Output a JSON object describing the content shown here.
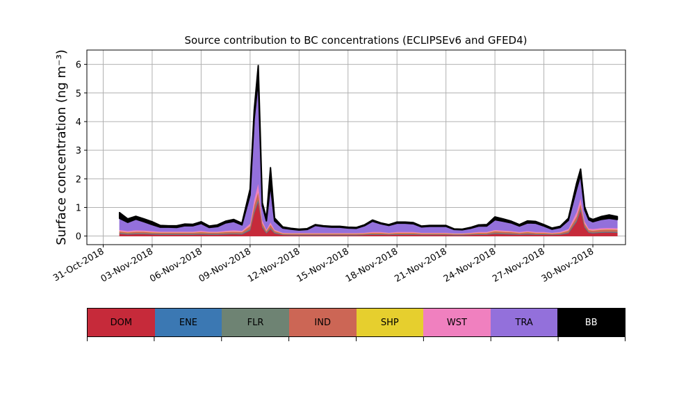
{
  "chart_data": {
    "type": "area",
    "title": "Source contribution to BC concentrations (ECLIPSEv6 and GFED4)",
    "ylabel": "Surface concentration (ng m⁻³)",
    "xlabel": "",
    "ylim": [
      -0.3,
      6.5
    ],
    "yticks": [
      0,
      1,
      2,
      3,
      4,
      5,
      6
    ],
    "xlim": [
      "2018-10-30",
      "2018-12-02"
    ],
    "xticks": [
      "2018-10-31",
      "2018-11-03",
      "2018-11-06",
      "2018-11-09",
      "2018-11-12",
      "2018-11-15",
      "2018-11-18",
      "2018-11-21",
      "2018-11-24",
      "2018-11-27",
      "2018-11-30"
    ],
    "xtick_labels": [
      "31-Oct-2018",
      "03-Nov-2018",
      "06-Nov-2018",
      "09-Nov-2018",
      "12-Nov-2018",
      "15-Nov-2018",
      "18-Nov-2018",
      "21-Nov-2018",
      "24-Nov-2018",
      "27-Nov-2018",
      "30-Nov-2018"
    ],
    "grid": true,
    "x": [
      "2018-11-01",
      "2018-11-01T12",
      "2018-11-02",
      "2018-11-02T12",
      "2018-11-03",
      "2018-11-03T12",
      "2018-11-04",
      "2018-11-04T12",
      "2018-11-05",
      "2018-11-05T12",
      "2018-11-06",
      "2018-11-06T12",
      "2018-11-07",
      "2018-11-07T12",
      "2018-11-08",
      "2018-11-08T12",
      "2018-11-09",
      "2018-11-09T06",
      "2018-11-09T12",
      "2018-11-09T18",
      "2018-11-10",
      "2018-11-10T06",
      "2018-11-10T12",
      "2018-11-11",
      "2018-11-11T12",
      "2018-11-12",
      "2018-11-12T12",
      "2018-11-13",
      "2018-11-13T12",
      "2018-11-14",
      "2018-11-14T12",
      "2018-11-15",
      "2018-11-15T12",
      "2018-11-16",
      "2018-11-16T12",
      "2018-11-17",
      "2018-11-17T12",
      "2018-11-18",
      "2018-11-18T12",
      "2018-11-19",
      "2018-11-19T12",
      "2018-11-20",
      "2018-11-20T12",
      "2018-11-21",
      "2018-11-21T12",
      "2018-11-22",
      "2018-11-22T12",
      "2018-11-23",
      "2018-11-23T12",
      "2018-11-24",
      "2018-11-24T12",
      "2018-11-25",
      "2018-11-25T12",
      "2018-11-26",
      "2018-11-26T12",
      "2018-11-27",
      "2018-11-27T12",
      "2018-11-28",
      "2018-11-28T12",
      "2018-11-29",
      "2018-11-29T06",
      "2018-11-29T12",
      "2018-11-29T18",
      "2018-11-30",
      "2018-11-30T12",
      "2018-12-01",
      "2018-12-01T12"
    ],
    "series": [
      {
        "name": "DOM",
        "color": "#c62a3a",
        "values": [
          0.08,
          0.06,
          0.07,
          0.07,
          0.06,
          0.05,
          0.05,
          0.05,
          0.05,
          0.05,
          0.06,
          0.05,
          0.05,
          0.06,
          0.07,
          0.06,
          0.2,
          0.8,
          1.2,
          0.3,
          0.1,
          0.25,
          0.1,
          0.04,
          0.03,
          0.03,
          0.03,
          0.03,
          0.03,
          0.03,
          0.03,
          0.03,
          0.03,
          0.04,
          0.05,
          0.05,
          0.04,
          0.05,
          0.05,
          0.05,
          0.04,
          0.04,
          0.04,
          0.04,
          0.03,
          0.03,
          0.04,
          0.05,
          0.05,
          0.08,
          0.07,
          0.06,
          0.05,
          0.06,
          0.05,
          0.05,
          0.04,
          0.05,
          0.1,
          0.5,
          0.9,
          0.3,
          0.12,
          0.1,
          0.12,
          0.13,
          0.12
        ]
      },
      {
        "name": "ENE",
        "color": "#3b78b3",
        "values": [
          0.01,
          0.01,
          0.01,
          0.01,
          0.01,
          0.01,
          0.01,
          0.01,
          0.01,
          0.01,
          0.01,
          0.01,
          0.01,
          0.01,
          0.01,
          0.01,
          0.02,
          0.03,
          0.04,
          0.02,
          0.01,
          0.02,
          0.01,
          0.01,
          0.01,
          0.01,
          0.01,
          0.01,
          0.01,
          0.01,
          0.01,
          0.01,
          0.01,
          0.01,
          0.01,
          0.01,
          0.01,
          0.01,
          0.01,
          0.01,
          0.01,
          0.01,
          0.01,
          0.01,
          0.01,
          0.01,
          0.01,
          0.01,
          0.01,
          0.01,
          0.01,
          0.01,
          0.01,
          0.01,
          0.01,
          0.01,
          0.01,
          0.01,
          0.01,
          0.02,
          0.03,
          0.02,
          0.01,
          0.01,
          0.01,
          0.01,
          0.01
        ]
      },
      {
        "name": "FLR",
        "color": "#6e8373",
        "values": [
          0.02,
          0.02,
          0.02,
          0.02,
          0.02,
          0.02,
          0.02,
          0.02,
          0.02,
          0.02,
          0.02,
          0.02,
          0.02,
          0.02,
          0.02,
          0.02,
          0.03,
          0.05,
          0.06,
          0.03,
          0.02,
          0.03,
          0.02,
          0.01,
          0.01,
          0.01,
          0.01,
          0.01,
          0.01,
          0.01,
          0.01,
          0.01,
          0.01,
          0.01,
          0.01,
          0.01,
          0.01,
          0.01,
          0.01,
          0.01,
          0.01,
          0.01,
          0.01,
          0.01,
          0.01,
          0.01,
          0.01,
          0.01,
          0.01,
          0.02,
          0.02,
          0.02,
          0.01,
          0.02,
          0.01,
          0.01,
          0.01,
          0.01,
          0.02,
          0.04,
          0.05,
          0.03,
          0.02,
          0.02,
          0.02,
          0.02,
          0.02
        ]
      },
      {
        "name": "IND",
        "color": "#cc6655",
        "values": [
          0.05,
          0.04,
          0.05,
          0.05,
          0.04,
          0.04,
          0.04,
          0.04,
          0.04,
          0.04,
          0.05,
          0.04,
          0.04,
          0.05,
          0.05,
          0.05,
          0.1,
          0.2,
          0.25,
          0.1,
          0.05,
          0.1,
          0.05,
          0.03,
          0.03,
          0.03,
          0.03,
          0.03,
          0.03,
          0.03,
          0.03,
          0.03,
          0.03,
          0.03,
          0.04,
          0.04,
          0.03,
          0.04,
          0.04,
          0.04,
          0.03,
          0.03,
          0.03,
          0.03,
          0.02,
          0.02,
          0.03,
          0.04,
          0.04,
          0.06,
          0.05,
          0.05,
          0.04,
          0.05,
          0.04,
          0.04,
          0.03,
          0.04,
          0.06,
          0.12,
          0.15,
          0.08,
          0.06,
          0.06,
          0.07,
          0.07,
          0.07
        ]
      },
      {
        "name": "SHP",
        "color": "#e6cf2e",
        "values": [
          0.01,
          0.01,
          0.01,
          0.01,
          0.01,
          0.01,
          0.01,
          0.01,
          0.01,
          0.01,
          0.01,
          0.01,
          0.01,
          0.01,
          0.01,
          0.01,
          0.01,
          0.01,
          0.01,
          0.01,
          0.01,
          0.01,
          0.01,
          0.01,
          0.01,
          0.01,
          0.01,
          0.01,
          0.01,
          0.01,
          0.01,
          0.01,
          0.01,
          0.01,
          0.01,
          0.01,
          0.01,
          0.01,
          0.01,
          0.01,
          0.01,
          0.01,
          0.01,
          0.01,
          0.01,
          0.01,
          0.01,
          0.01,
          0.01,
          0.01,
          0.01,
          0.01,
          0.01,
          0.01,
          0.01,
          0.01,
          0.01,
          0.01,
          0.01,
          0.01,
          0.01,
          0.01,
          0.01,
          0.01,
          0.01,
          0.01,
          0.01
        ]
      },
      {
        "name": "WST",
        "color": "#f080bf",
        "values": [
          0.05,
          0.04,
          0.05,
          0.04,
          0.04,
          0.03,
          0.03,
          0.03,
          0.03,
          0.03,
          0.04,
          0.03,
          0.03,
          0.04,
          0.05,
          0.04,
          0.08,
          0.2,
          0.3,
          0.1,
          0.04,
          0.08,
          0.04,
          0.02,
          0.02,
          0.02,
          0.02,
          0.02,
          0.02,
          0.02,
          0.02,
          0.02,
          0.02,
          0.02,
          0.03,
          0.03,
          0.02,
          0.03,
          0.03,
          0.03,
          0.02,
          0.02,
          0.02,
          0.02,
          0.02,
          0.02,
          0.02,
          0.03,
          0.03,
          0.04,
          0.04,
          0.03,
          0.03,
          0.03,
          0.03,
          0.03,
          0.02,
          0.03,
          0.05,
          0.15,
          0.2,
          0.08,
          0.05,
          0.05,
          0.05,
          0.05,
          0.05
        ]
      },
      {
        "name": "TRA",
        "color": "#9370db",
        "values": [
          0.4,
          0.3,
          0.38,
          0.3,
          0.22,
          0.15,
          0.15,
          0.14,
          0.2,
          0.2,
          0.25,
          0.14,
          0.17,
          0.27,
          0.3,
          0.2,
          1.0,
          2.8,
          3.6,
          0.5,
          0.3,
          1.3,
          0.3,
          0.16,
          0.13,
          0.1,
          0.12,
          0.26,
          0.22,
          0.2,
          0.2,
          0.17,
          0.16,
          0.24,
          0.37,
          0.28,
          0.25,
          0.3,
          0.3,
          0.28,
          0.2,
          0.22,
          0.22,
          0.22,
          0.13,
          0.12,
          0.15,
          0.2,
          0.2,
          0.35,
          0.32,
          0.28,
          0.2,
          0.28,
          0.3,
          0.2,
          0.12,
          0.15,
          0.3,
          0.8,
          0.8,
          0.4,
          0.3,
          0.25,
          0.3,
          0.33,
          0.3
        ]
      },
      {
        "name": "BB",
        "color": "#000000",
        "values": [
          0.2,
          0.12,
          0.1,
          0.1,
          0.1,
          0.06,
          0.05,
          0.06,
          0.06,
          0.05,
          0.06,
          0.05,
          0.06,
          0.06,
          0.07,
          0.06,
          0.2,
          0.3,
          0.5,
          0.1,
          0.1,
          0.6,
          0.1,
          0.04,
          0.03,
          0.03,
          0.03,
          0.03,
          0.03,
          0.03,
          0.03,
          0.03,
          0.03,
          0.03,
          0.04,
          0.03,
          0.03,
          0.04,
          0.04,
          0.04,
          0.03,
          0.03,
          0.03,
          0.03,
          0.02,
          0.02,
          0.03,
          0.04,
          0.05,
          0.1,
          0.08,
          0.06,
          0.05,
          0.07,
          0.06,
          0.05,
          0.04,
          0.04,
          0.07,
          0.2,
          0.2,
          0.1,
          0.07,
          0.08,
          0.1,
          0.12,
          0.1
        ]
      }
    ]
  }
}
